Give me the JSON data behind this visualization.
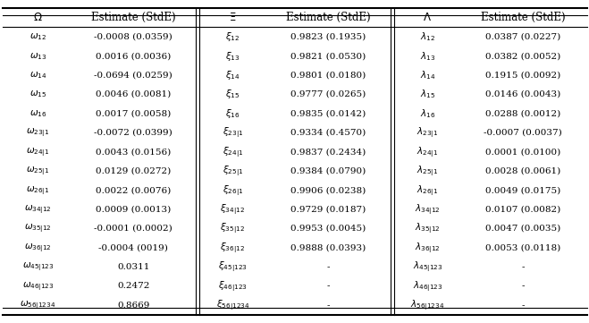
{
  "figsize": [
    6.59,
    3.61
  ],
  "dpi": 100,
  "header_fs": 8.5,
  "cell_fs": 7.5,
  "omega_labels_tex": [
    "$\\omega_{12}$",
    "$\\omega_{13}$",
    "$\\omega_{14}$",
    "$\\omega_{15}$",
    "$\\omega_{16}$",
    "$\\omega_{23|1}$",
    "$\\omega_{24|1}$",
    "$\\omega_{25|1}$",
    "$\\omega_{26|1}$",
    "$\\omega_{34|12}$",
    "$\\omega_{35|12}$",
    "$\\omega_{36|12}$",
    "$\\omega_{45|123}$",
    "$\\omega_{46|123}$",
    "$\\omega_{56|1234}$"
  ],
  "xi_labels_tex": [
    "$\\xi_{12}$",
    "$\\xi_{13}$",
    "$\\xi_{14}$",
    "$\\xi_{15}$",
    "$\\xi_{16}$",
    "$\\xi_{23|1}$",
    "$\\xi_{24|1}$",
    "$\\xi_{25|1}$",
    "$\\xi_{26|1}$",
    "$\\xi_{34|12}$",
    "$\\xi_{35|12}$",
    "$\\xi_{36|12}$",
    "$\\xi_{45|123}$",
    "$\\xi_{46|123}$",
    "$\\xi_{56|1234}$"
  ],
  "lambda_labels_tex": [
    "$\\lambda_{12}$",
    "$\\lambda_{13}$",
    "$\\lambda_{14}$",
    "$\\lambda_{15}$",
    "$\\lambda_{16}$",
    "$\\lambda_{23|1}$",
    "$\\lambda_{24|1}$",
    "$\\lambda_{25|1}$",
    "$\\lambda_{26|1}$",
    "$\\lambda_{34|12}$",
    "$\\lambda_{35|12}$",
    "$\\lambda_{36|12}$",
    "$\\lambda_{45|123}$",
    "$\\lambda_{46|123}$",
    "$\\lambda_{56|1234}$"
  ],
  "omega_vals": [
    "-0.0008 (0.0359)",
    "0.0016 (0.0036)",
    "-0.0694 (0.0259)",
    "0.0046 (0.0081)",
    "0.0017 (0.0058)",
    "-0.0072 (0.0399)",
    "0.0043 (0.0156)",
    "0.0129 (0.0272)",
    "0.0022 (0.0076)",
    "0.0009 (0.0013)",
    "-0.0001 (0.0002)",
    "-0.0004 (0019)",
    "0.0311",
    "0.2472",
    "0.8669"
  ],
  "xi_vals": [
    "0.9823 (0.1935)",
    "0.9821 (0.0530)",
    "0.9801 (0.0180)",
    "0.9777 (0.0265)",
    "0.9835 (0.0142)",
    "0.9334 (0.4570)",
    "0.9837 (0.2434)",
    "0.9384 (0.0790)",
    "0.9906 (0.0238)",
    "0.9729 (0.0187)",
    "0.9953 (0.0045)",
    "0.9888 (0.0393)",
    "-",
    "-",
    "-"
  ],
  "lambda_vals": [
    "0.0387 (0.0227)",
    "0.0382 (0.0052)",
    "0.1915 (0.0092)",
    "0.0146 (0.0043)",
    "0.0288 (0.0012)",
    "-0.0007 (0.0037)",
    "0.0001 (0.0100)",
    "0.0028 (0.0061)",
    "0.0049 (0.0175)",
    "0.0107 (0.0082)",
    "0.0047 (0.0035)",
    "0.0053 (0.0118)",
    "-",
    "-",
    "-"
  ]
}
